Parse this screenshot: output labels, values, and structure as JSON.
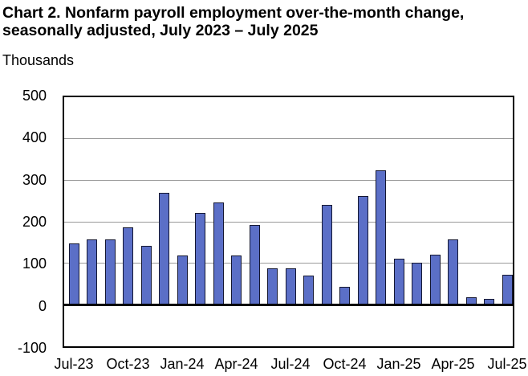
{
  "header": {
    "title_line1": "Chart 2. Nonfarm payroll employment over-the-month change,",
    "title_line2": "seasonally adjusted, July 2023 – July 2025",
    "units_label": "Thousands"
  },
  "chart_data": {
    "type": "bar",
    "title": "Chart 2. Nonfarm payroll employment over-the-month change, seasonally adjusted, July 2023 – July 2025",
    "xlabel": "",
    "ylabel": "Thousands",
    "ylim": [
      -100,
      500
    ],
    "y_ticks": [
      500,
      400,
      300,
      200,
      100,
      0,
      -100
    ],
    "grid": "horizontal-gridlines",
    "legend": "none",
    "categories": [
      "Jul-23",
      "Aug-23",
      "Sep-23",
      "Oct-23",
      "Nov-23",
      "Dec-23",
      "Jan-24",
      "Feb-24",
      "Mar-24",
      "Apr-24",
      "May-24",
      "Jun-24",
      "Jul-24",
      "Aug-24",
      "Sep-24",
      "Oct-24",
      "Nov-24",
      "Dec-24",
      "Jan-25",
      "Feb-25",
      "Mar-25",
      "Apr-25",
      "May-25",
      "Jun-25",
      "Jul-25"
    ],
    "values": [
      148,
      157,
      158,
      186,
      141,
      269,
      119,
      222,
      246,
      118,
      193,
      87,
      88,
      71,
      240,
      44,
      261,
      323,
      111,
      102,
      120,
      158,
      19,
      14,
      73
    ],
    "x_tick_labels": [
      "Jul-23",
      "Oct-23",
      "Jan-24",
      "Apr-24",
      "Jul-24",
      "Oct-24",
      "Jan-25",
      "Apr-25",
      "Jul-25"
    ],
    "x_tick_every": 3,
    "colors": {
      "bar_fill": "#5B6FC7",
      "bar_border": "#141731",
      "gridline": "#9A9A9A",
      "axis": "#000000",
      "background": "#FFFFFF",
      "text": "#000000"
    }
  }
}
